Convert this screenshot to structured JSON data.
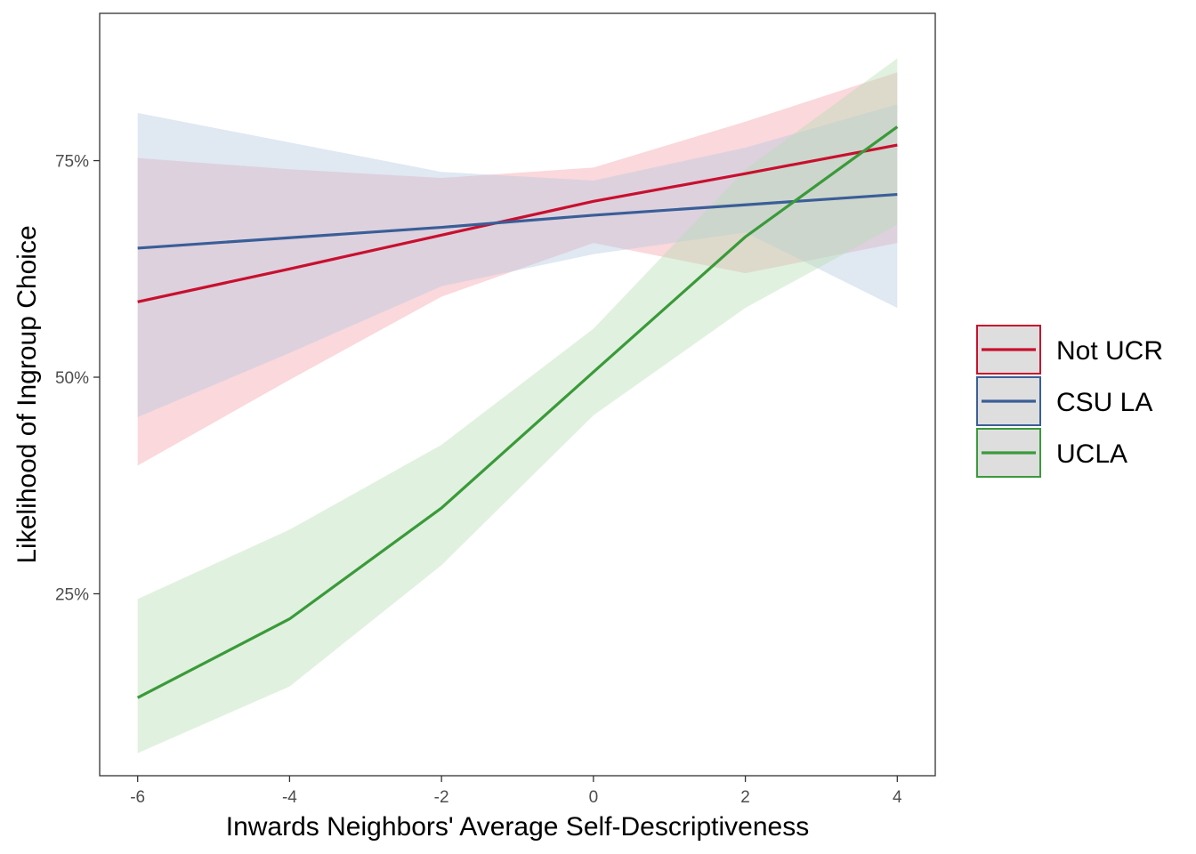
{
  "chart_data": {
    "type": "line",
    "xlabel": "Inwards Neighbors' Average Self-Descriptiveness",
    "ylabel": "Likelihood of Ingroup Choice",
    "xlim": [
      -6.5,
      4.5
    ],
    "ylim": [
      0.04,
      0.92
    ],
    "x_ticks": [
      -6,
      -4,
      -2,
      0,
      2,
      4
    ],
    "x_tick_labels": [
      "-6",
      "-4",
      "-2",
      "0",
      "2",
      "4"
    ],
    "y_ticks": [
      0.25,
      0.5,
      0.75
    ],
    "y_tick_labels": [
      "25%",
      "50%",
      "75%"
    ],
    "grid": false,
    "legend_position": "right",
    "x": [
      -6,
      -4,
      -2,
      0,
      2,
      4
    ],
    "series": [
      {
        "name": "Not UCR",
        "color": "#C8102E",
        "fill": "#F4A3AC",
        "values": [
          0.587,
          0.625,
          0.664,
          0.703,
          0.735,
          0.768
        ],
        "lower": [
          0.398,
          0.497,
          0.593,
          0.655,
          0.62,
          0.655
        ],
        "upper": [
          0.753,
          0.74,
          0.73,
          0.742,
          0.795,
          0.852
        ]
      },
      {
        "name": "CSU LA",
        "color": "#3A5E97",
        "fill": "#B5C7DF",
        "values": [
          0.649,
          0.661,
          0.673,
          0.687,
          0.699,
          0.711
        ],
        "lower": [
          0.454,
          0.528,
          0.605,
          0.642,
          0.667,
          0.58
        ],
        "upper": [
          0.805,
          0.771,
          0.737,
          0.727,
          0.765,
          0.815
        ]
      },
      {
        "name": "UCLA",
        "color": "#3A9A3A",
        "fill": "#B7DEB3",
        "values": [
          0.13,
          0.221,
          0.349,
          0.506,
          0.662,
          0.789
        ],
        "lower": [
          0.066,
          0.143,
          0.283,
          0.456,
          0.58,
          0.676
        ],
        "upper": [
          0.244,
          0.324,
          0.422,
          0.556,
          0.74,
          0.868
        ]
      }
    ]
  }
}
